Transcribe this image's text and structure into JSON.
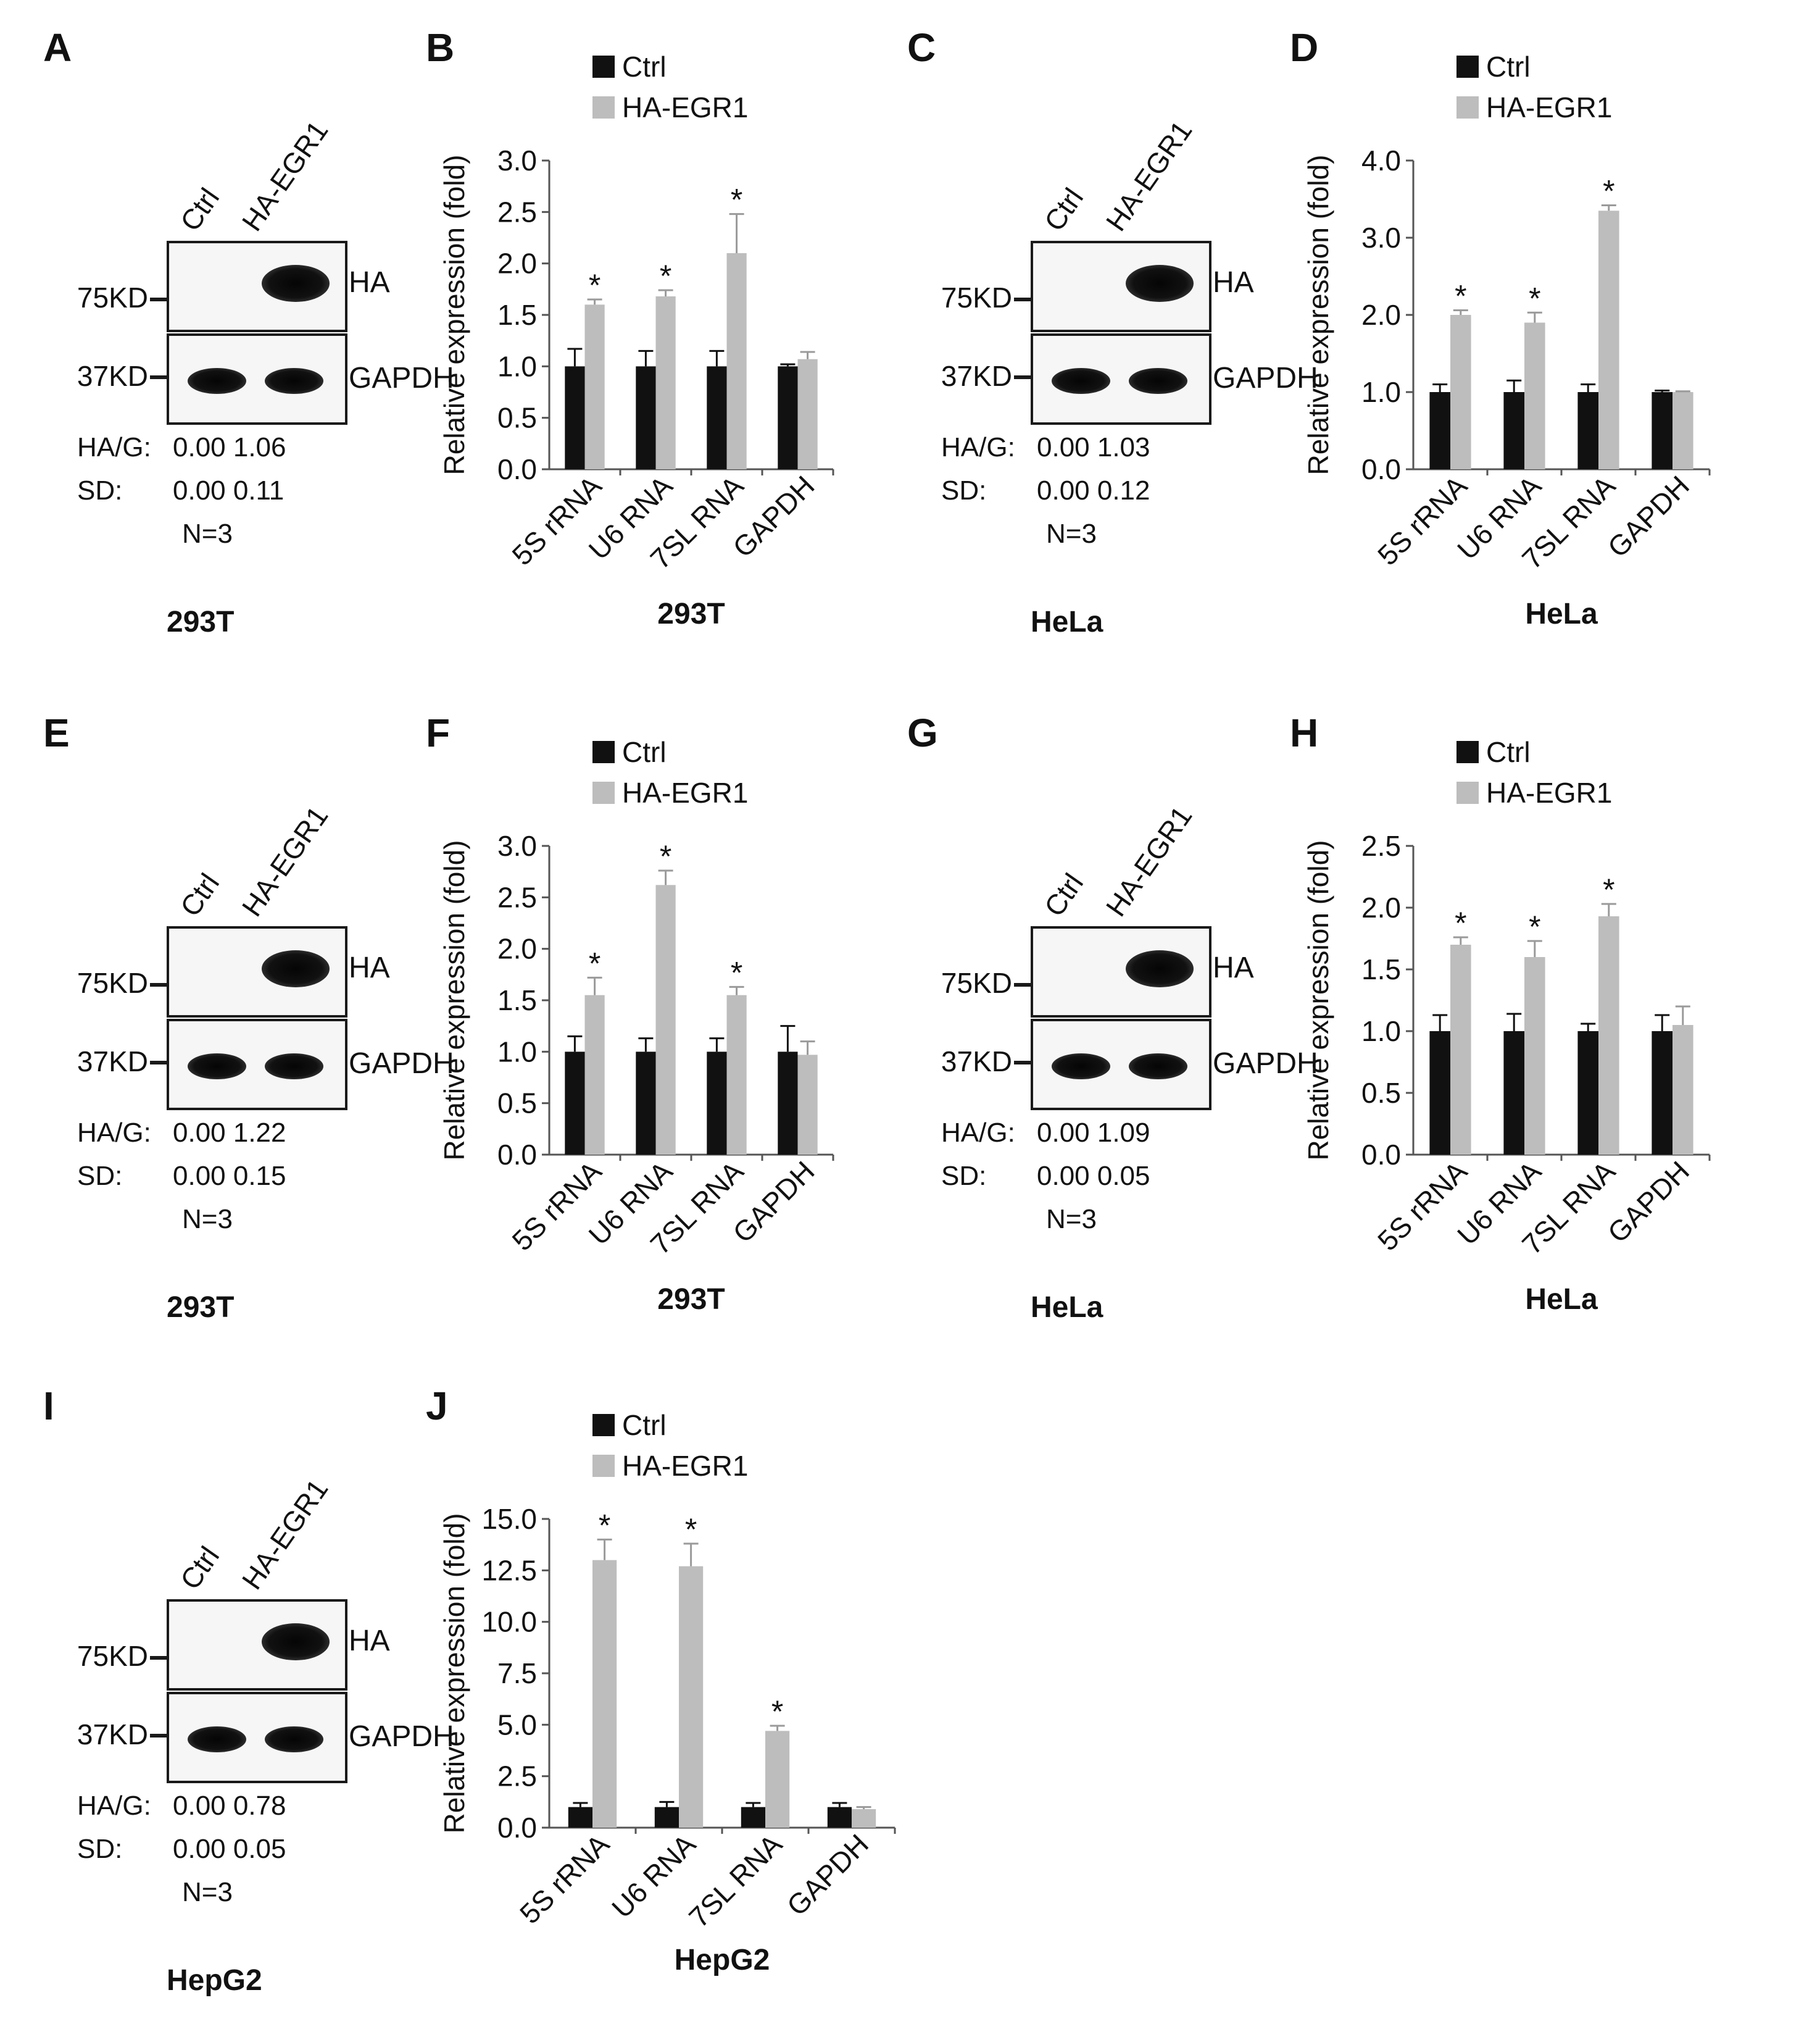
{
  "colors": {
    "ctrl": "#111111",
    "ha": "#bdbdbd",
    "axis": "#555555"
  },
  "blots": [
    {
      "panel": "A",
      "lanes": [
        "Ctrl",
        "HA-EGR1"
      ],
      "markers": [
        "75KD",
        "37KD"
      ],
      "bands": [
        "HA",
        "GAPDH"
      ],
      "ratio_label": "HA/G:",
      "ratio_values": "0.00 1.06",
      "sd_label": "SD:",
      "sd_values": "0.00 0.11",
      "n": "N=3",
      "cell_line": "293T"
    },
    {
      "panel": "C",
      "lanes": [
        "Ctrl",
        "HA-EGR1"
      ],
      "markers": [
        "75KD",
        "37KD"
      ],
      "bands": [
        "HA",
        "GAPDH"
      ],
      "ratio_label": "HA/G:",
      "ratio_values": "0.00 1.03",
      "sd_label": "SD:",
      "sd_values": "0.00 0.12",
      "n": "N=3",
      "cell_line": "HeLa"
    },
    {
      "panel": "E",
      "lanes": [
        "Ctrl",
        "HA-EGR1"
      ],
      "markers": [
        "75KD",
        "37KD"
      ],
      "bands": [
        "HA",
        "GAPDH"
      ],
      "ratio_label": "HA/G:",
      "ratio_values": "0.00 1.22",
      "sd_label": "SD:",
      "sd_values": "0.00 0.15",
      "n": "N=3",
      "cell_line": "293T"
    },
    {
      "panel": "G",
      "lanes": [
        "Ctrl",
        "HA-EGR1"
      ],
      "markers": [
        "75KD",
        "37KD"
      ],
      "bands": [
        "HA",
        "GAPDH"
      ],
      "ratio_label": "HA/G:",
      "ratio_values": "0.00 1.09",
      "sd_label": "SD:",
      "sd_values": "0.00 0.05",
      "n": "N=3",
      "cell_line": "HeLa"
    },
    {
      "panel": "I",
      "lanes": [
        "Ctrl",
        "HA-EGR1"
      ],
      "markers": [
        "75KD",
        "37KD"
      ],
      "bands": [
        "HA",
        "GAPDH"
      ],
      "ratio_label": "HA/G:",
      "ratio_values": "0.00 0.78",
      "sd_label": "SD:",
      "sd_values": "0.00 0.05",
      "n": "N=3",
      "cell_line": "HepG2"
    }
  ],
  "chart_data": [
    {
      "panel": "B",
      "type": "bar",
      "cell_line": "293T",
      "ylabel": "Relative expression (fold)",
      "categories": [
        "5S rRNA",
        "U6 RNA",
        "7SL RNA",
        "GAPDH"
      ],
      "ylim": [
        0,
        3.0
      ],
      "ticks": [
        "0.0",
        "0.5",
        "1.0",
        "1.5",
        "2.0",
        "2.5",
        "3.0"
      ],
      "star": "*",
      "series": [
        {
          "name": "Ctrl",
          "values": [
            1.0,
            1.0,
            1.0,
            1.0
          ],
          "errors": [
            0.17,
            0.15,
            0.15,
            0.02
          ],
          "stars": [
            false,
            false,
            false,
            false
          ]
        },
        {
          "name": "HA-EGR1",
          "values": [
            1.6,
            1.68,
            2.1,
            1.07
          ],
          "errors": [
            0.05,
            0.06,
            0.38,
            0.07
          ],
          "stars": [
            true,
            true,
            true,
            false
          ]
        }
      ]
    },
    {
      "panel": "D",
      "type": "bar",
      "cell_line": "HeLa",
      "ylabel": "Relative expression (fold)",
      "categories": [
        "5S rRNA",
        "U6 RNA",
        "7SL RNA",
        "GAPDH"
      ],
      "ylim": [
        0,
        4.0
      ],
      "ticks": [
        "0.0",
        "1.0",
        "2.0",
        "3.0",
        "4.0"
      ],
      "star": "*",
      "series": [
        {
          "name": "Ctrl",
          "values": [
            1.0,
            1.0,
            1.0,
            1.0
          ],
          "errors": [
            0.1,
            0.15,
            0.1,
            0.02
          ],
          "stars": [
            false,
            false,
            false,
            false
          ]
        },
        {
          "name": "HA-EGR1",
          "values": [
            2.0,
            1.9,
            3.35,
            1.0
          ],
          "errors": [
            0.06,
            0.13,
            0.07,
            0.01
          ],
          "stars": [
            true,
            true,
            true,
            false
          ]
        }
      ]
    },
    {
      "panel": "F",
      "type": "bar",
      "cell_line": "293T",
      "ylabel": "Relative expression (fold)",
      "categories": [
        "5S rRNA",
        "U6 RNA",
        "7SL RNA",
        "GAPDH"
      ],
      "ylim": [
        0,
        3.0
      ],
      "ticks": [
        "0.0",
        "0.5",
        "1.0",
        "1.5",
        "2.0",
        "2.5",
        "3.0"
      ],
      "star": "*",
      "series": [
        {
          "name": "Ctrl",
          "values": [
            1.0,
            1.0,
            1.0,
            1.0
          ],
          "errors": [
            0.15,
            0.13,
            0.13,
            0.25
          ],
          "stars": [
            false,
            false,
            false,
            false
          ]
        },
        {
          "name": "HA-EGR1",
          "values": [
            1.55,
            2.62,
            1.55,
            0.97
          ],
          "errors": [
            0.17,
            0.14,
            0.08,
            0.13
          ],
          "stars": [
            true,
            true,
            true,
            false
          ]
        }
      ]
    },
    {
      "panel": "H",
      "type": "bar",
      "cell_line": "HeLa",
      "ylabel": "Relative expression (fold)",
      "categories": [
        "5S rRNA",
        "U6 RNA",
        "7SL RNA",
        "GAPDH"
      ],
      "ylim": [
        0,
        2.5
      ],
      "ticks": [
        "0.0",
        "0.5",
        "1.0",
        "1.5",
        "2.0",
        "2.5"
      ],
      "star": "*",
      "series": [
        {
          "name": "Ctrl",
          "values": [
            1.0,
            1.0,
            1.0,
            1.0
          ],
          "errors": [
            0.13,
            0.14,
            0.06,
            0.13
          ],
          "stars": [
            false,
            false,
            false,
            false
          ]
        },
        {
          "name": "HA-EGR1",
          "values": [
            1.7,
            1.6,
            1.93,
            1.05
          ],
          "errors": [
            0.06,
            0.13,
            0.1,
            0.15
          ],
          "stars": [
            true,
            true,
            true,
            false
          ]
        }
      ]
    },
    {
      "panel": "J",
      "type": "bar",
      "cell_line": "HepG2",
      "ylabel": "Relative expression (fold)",
      "categories": [
        "5S rRNA",
        "U6 RNA",
        "7SL RNA",
        "GAPDH"
      ],
      "ylim": [
        0,
        15.0
      ],
      "ticks": [
        "0.0",
        "2.5",
        "5.0",
        "7.5",
        "10.0",
        "12.5",
        "15.0"
      ],
      "star": "*",
      "series": [
        {
          "name": "Ctrl",
          "values": [
            1.0,
            1.0,
            1.0,
            1.0
          ],
          "errors": [
            0.2,
            0.25,
            0.2,
            0.2
          ],
          "stars": [
            false,
            false,
            false,
            false
          ]
        },
        {
          "name": "HA-EGR1",
          "values": [
            13.0,
            12.7,
            4.7,
            0.9
          ],
          "errors": [
            1.0,
            1.1,
            0.25,
            0.1
          ],
          "stars": [
            true,
            true,
            true,
            false
          ]
        }
      ]
    }
  ]
}
